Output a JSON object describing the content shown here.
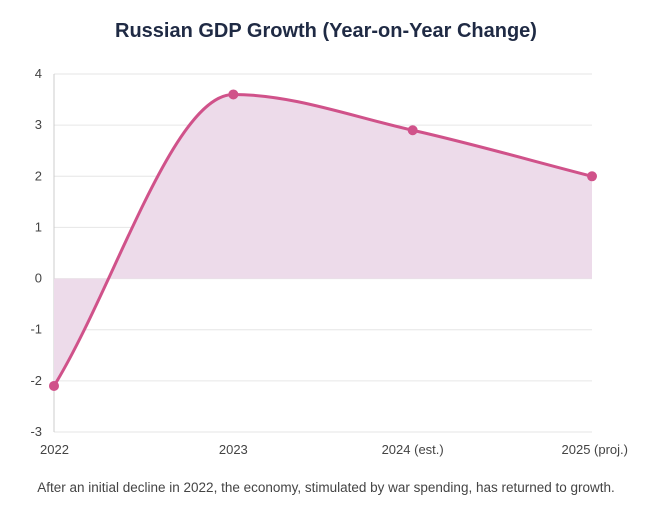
{
  "chart_data": {
    "type": "area",
    "title": "Russian GDP Growth (Year-on-Year Change)",
    "caption": "After an initial decline in 2022, the economy, stimulated by war spending, has returned to growth.",
    "categories": [
      "2022",
      "2023",
      "2024 (est.)",
      "2025 (proj.)"
    ],
    "series": [
      {
        "values": [
          -2.1,
          3.6,
          2.9,
          2.0
        ]
      }
    ],
    "yticks": [
      -3,
      -2,
      -1,
      0,
      1,
      2,
      3,
      4
    ],
    "ylim": [
      -3,
      4
    ],
    "grid": true,
    "legend": "none",
    "colors": {
      "line": "#d0528a",
      "fill": "#eddbea",
      "grid": "#e6e6e6",
      "axis": "#cccccc"
    }
  }
}
